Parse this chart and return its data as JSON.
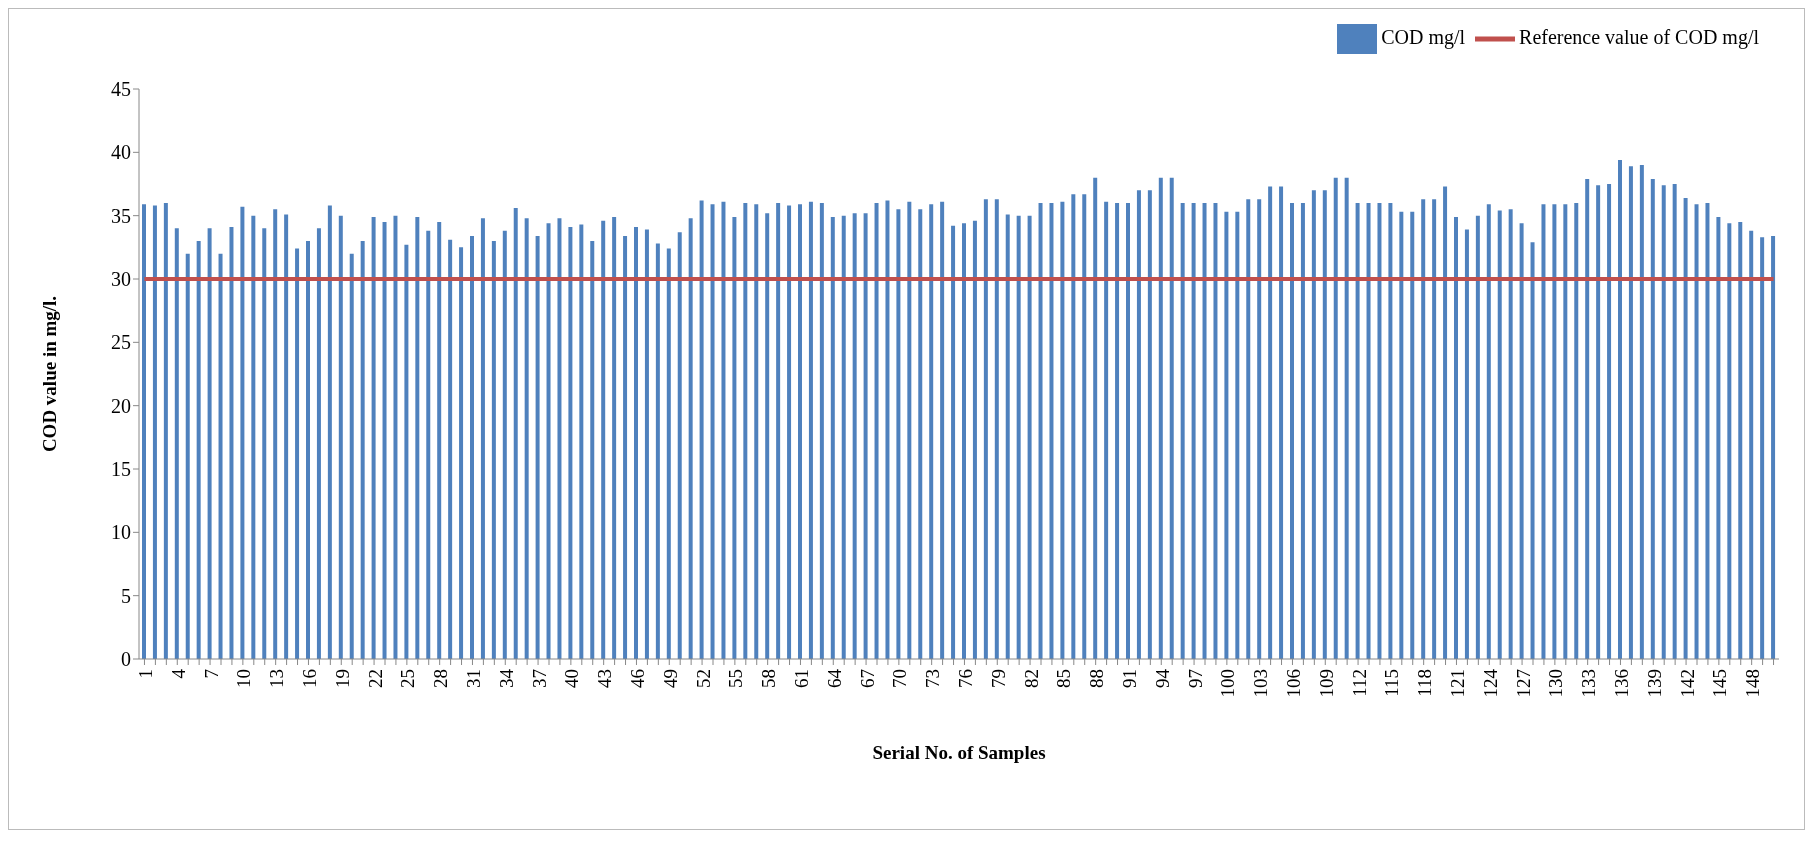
{
  "chart_data": {
    "type": "bar",
    "xlabel": "Serial No. of Samples",
    "ylabel": "COD value in mg/l.",
    "categories": [
      "1",
      null,
      null,
      "4",
      null,
      null,
      "7",
      null,
      null,
      "10",
      null,
      null,
      "13",
      null,
      null,
      "16",
      null,
      null,
      "19",
      null,
      null,
      "22",
      null,
      null,
      "25",
      null,
      null,
      "28",
      null,
      null,
      "31",
      null,
      null,
      "34",
      null,
      null,
      "37",
      null,
      null,
      "40",
      null,
      null,
      "43",
      null,
      null,
      "46",
      null,
      null,
      "49",
      null,
      null,
      "52",
      null,
      null,
      "55",
      null,
      null,
      "58",
      null,
      null,
      "61",
      null,
      null,
      "64",
      null,
      null,
      "67",
      null,
      null,
      "70",
      null,
      null,
      "73",
      null,
      null,
      "76",
      null,
      null,
      "79",
      null,
      null,
      "82",
      null,
      null,
      "85",
      null,
      null,
      "88",
      null,
      null,
      "91",
      null,
      null,
      "94",
      null,
      null,
      "97",
      null,
      null,
      "100",
      null,
      null,
      "103",
      null,
      null,
      "106",
      null,
      null,
      "109",
      null,
      null,
      "112",
      null,
      null,
      "115",
      null,
      null,
      "118",
      null,
      null,
      "121",
      null,
      null,
      "124",
      null,
      null,
      "127",
      null,
      null,
      "130",
      null,
      null,
      "133",
      null,
      null,
      "136",
      null,
      null,
      "139",
      null,
      null,
      "142",
      null,
      null,
      "145",
      null,
      null,
      "148",
      null,
      null
    ],
    "series": [
      {
        "name": "COD mg/l",
        "color": "#4f81bd",
        "values": [
          35.9,
          35.8,
          36,
          34,
          32,
          33,
          34,
          32,
          34.1,
          35.7,
          35,
          34,
          35.5,
          35.1,
          32.4,
          33,
          34,
          35.8,
          35,
          32,
          33,
          34.9,
          34.5,
          35,
          32.7,
          34.9,
          33.8,
          34.5,
          33.1,
          32.5,
          33.4,
          34.8,
          33,
          33.8,
          35.6,
          34.8,
          33.4,
          34.4,
          34.8,
          34.1,
          34.3,
          33,
          34.6,
          34.9,
          33.4,
          34.1,
          33.9,
          32.8,
          32.4,
          33.7,
          34.8,
          36.2,
          35.9,
          36.1,
          34.9,
          36,
          35.9,
          35.2,
          36,
          35.8,
          35.9,
          36.1,
          36,
          34.9,
          35,
          35.2,
          35.2,
          36,
          36.2,
          35.5,
          36.1,
          35.5,
          35.9,
          36.1,
          34.2,
          34.4,
          34.6,
          36.3,
          36.3,
          35.1,
          35,
          35,
          36,
          36,
          36.1,
          36.7,
          36.7,
          38,
          36.1,
          36,
          36,
          37,
          37,
          38,
          38,
          36,
          36,
          36,
          36,
          35.3,
          35.3,
          36.3,
          36.3,
          37.3,
          37.3,
          36,
          36,
          37,
          37,
          38,
          38,
          36,
          36,
          36,
          36,
          35.3,
          35.3,
          36.3,
          36.3,
          37.3,
          34.9,
          33.9,
          35,
          35.9,
          35.4,
          35.5,
          34.4,
          32.9,
          35.9,
          35.9,
          35.9,
          36,
          37.9,
          37.4,
          37.5,
          39.4,
          38.9,
          39,
          37.9,
          37.4,
          37.5,
          36.4,
          35.9,
          36,
          34.9,
          34.4,
          34.5,
          33.8,
          33.3,
          33.4
        ]
      },
      {
        "name": "Reference value of COD mg/l",
        "type": "line",
        "color": "#c0504d",
        "values": [
          30,
          30,
          30,
          30,
          30,
          30,
          30,
          30,
          30,
          30,
          30,
          30,
          30,
          30,
          30,
          30,
          30,
          30,
          30,
          30,
          30,
          30,
          30,
          30,
          30,
          30,
          30,
          30,
          30,
          30,
          30,
          30,
          30,
          30,
          30,
          30,
          30,
          30,
          30,
          30,
          30,
          30,
          30,
          30,
          30,
          30,
          30,
          30,
          30,
          30,
          30,
          30,
          30,
          30,
          30,
          30,
          30,
          30,
          30,
          30,
          30,
          30,
          30,
          30,
          30,
          30,
          30,
          30,
          30,
          30,
          30,
          30,
          30,
          30,
          30,
          30,
          30,
          30,
          30,
          30,
          30,
          30,
          30,
          30,
          30,
          30,
          30,
          30,
          30,
          30,
          30,
          30,
          30,
          30,
          30,
          30,
          30,
          30,
          30,
          30,
          30,
          30,
          30,
          30,
          30,
          30,
          30,
          30,
          30,
          30,
          30,
          30,
          30,
          30,
          30,
          30,
          30,
          30,
          30,
          30,
          30,
          30,
          30,
          30,
          30,
          30,
          30,
          30,
          30,
          30,
          30,
          30,
          30,
          30,
          30,
          30,
          30,
          30,
          30,
          30,
          30,
          30,
          30,
          30,
          30,
          30,
          30,
          30,
          30,
          30
        ]
      }
    ],
    "ylim": [
      0,
      45
    ],
    "yticks": [
      0,
      5,
      10,
      15,
      20,
      25,
      30,
      35,
      40,
      45
    ],
    "grid": false,
    "legend": "top right",
    "marker": "none",
    "line_style": "solid"
  }
}
